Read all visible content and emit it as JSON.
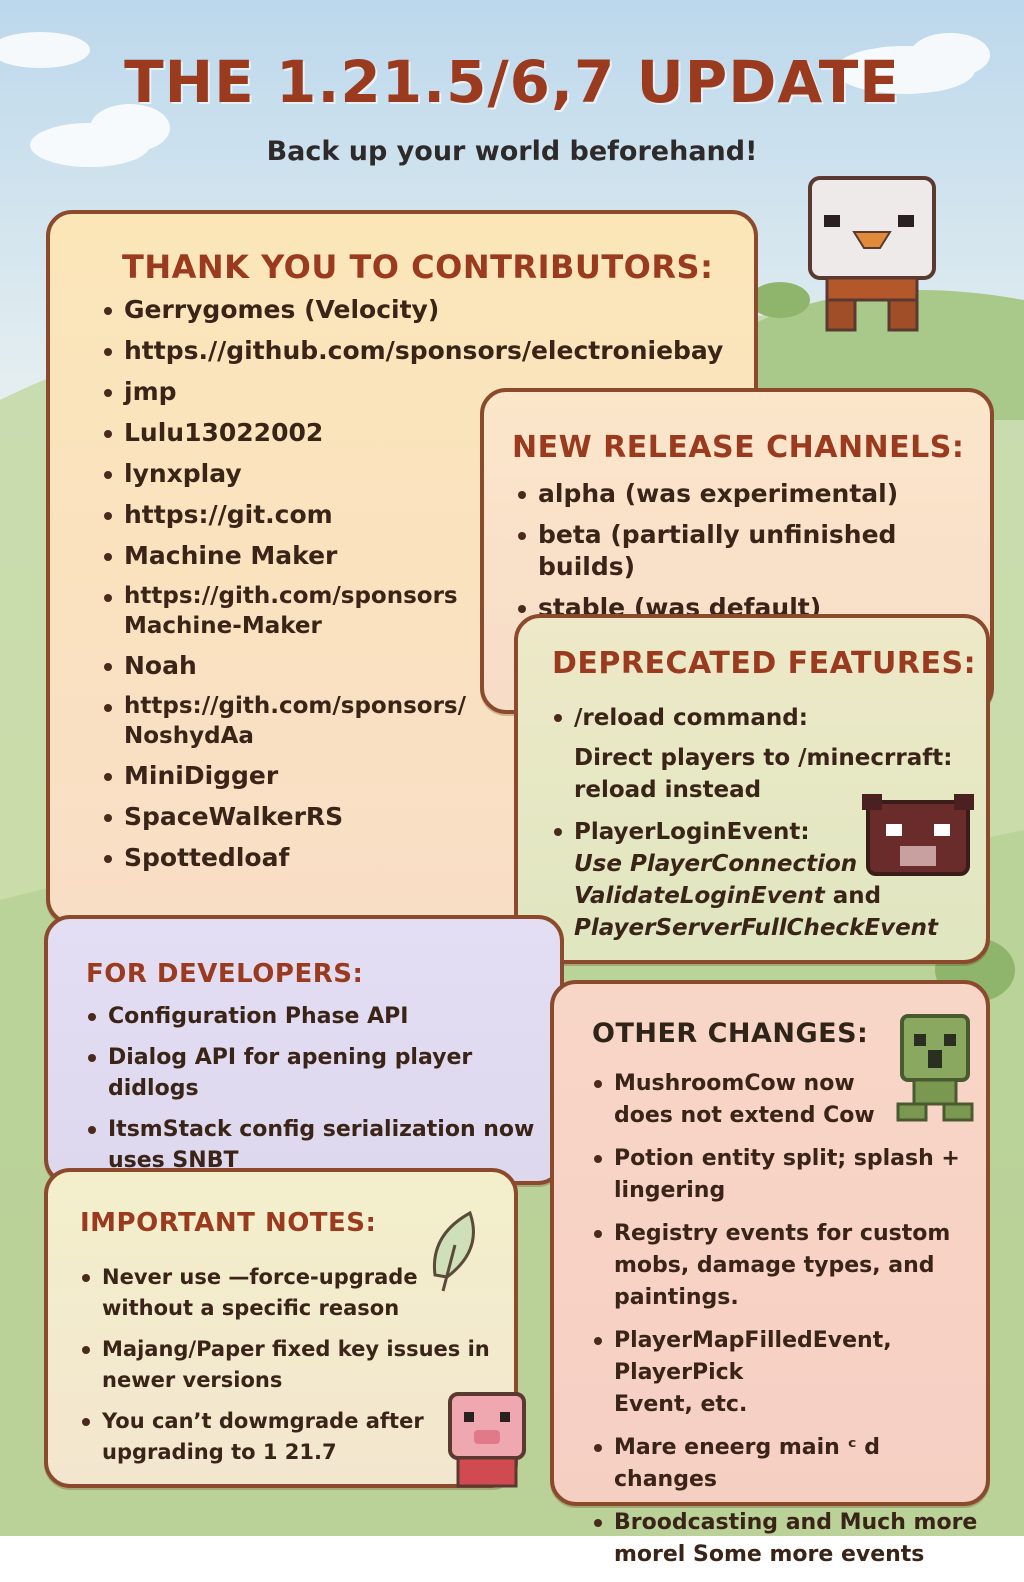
{
  "header": {
    "title": "THE 1.21.5/6,7 UPDATE",
    "subtitle": "Back up your world beforehand!"
  },
  "contributors": {
    "heading": "THANK YOU TO CONTRIBUTORS:",
    "items": [
      [
        "Gerrygomes  (Velocity)"
      ],
      [
        "https.//github.com/sponsors/electroniebay"
      ],
      [
        "jmp"
      ],
      [
        "Lulu13022002"
      ],
      [
        "lynxplay"
      ],
      [
        "https://git.com"
      ],
      [
        "Machine Maker"
      ],
      [
        "https://gith.com/sponsors",
        "Machine-Maker"
      ],
      [
        "Noah"
      ],
      [
        "https://gith.com/sponsors/",
        "NoshydAa"
      ],
      [
        "MiniDigger"
      ],
      [
        "SpaceWalkerRS"
      ],
      [
        "Spottedloaf"
      ]
    ]
  },
  "release_channels": {
    "heading": "NEW RELEASE CHANNELS:",
    "items": [
      "alpha (was experimental)",
      "beta (partially unfinished builds)",
      "stable (was default)"
    ]
  },
  "deprecated": {
    "heading": "DEPRECATED FEATURES:",
    "item1": {
      "title": "/reload command:",
      "line1": "Direct players to /minecrraft:",
      "line2": "reload instead"
    },
    "item2": {
      "title": "PlayerLoginEvent:",
      "line1": "Use PlayerConnection",
      "line2a": "ValidateLoginEvent",
      "line2b": " and",
      "line3": "PlayerServerFullCheckEvent"
    }
  },
  "developers": {
    "heading": "FOR DEVELOPERS:",
    "items": [
      [
        "Configuration Phase API"
      ],
      [
        "Dialog API for apening player didlogs"
      ],
      [
        "ItsmStack config serialization now",
        "uses SNBT"
      ]
    ]
  },
  "notes": {
    "heading": "IMPORTANT NOTES:",
    "items": [
      [
        "Never use —force-upgrade",
        "without a specific reason"
      ],
      [
        "Majang/Paper fixed key issues in",
        "newer versions"
      ],
      [
        "You can’t dowmgrade after",
        "upgrading to 1 21.7"
      ]
    ]
  },
  "other": {
    "heading": "OTHER CHANGES:",
    "items": [
      [
        "MushroomCow now",
        "does not extend Cow"
      ],
      [
        "Potion entity split; splash +",
        "lingering"
      ],
      [
        "Registry events for custom",
        "mobs, damage types, and",
        "paintings."
      ],
      [
        "PlayerMapFilledEvent, PlayerPick",
        "Event, etc."
      ],
      [
        "Mare eneerg main ᶜ d changes"
      ],
      [
        "Broodcasting and Much more",
        "morel Some more events"
      ]
    ]
  },
  "colors": {
    "title": "#9a3a1e",
    "border": "#8b4a2c",
    "sky": "#bcd8ea",
    "grass": "#a9c98a"
  }
}
